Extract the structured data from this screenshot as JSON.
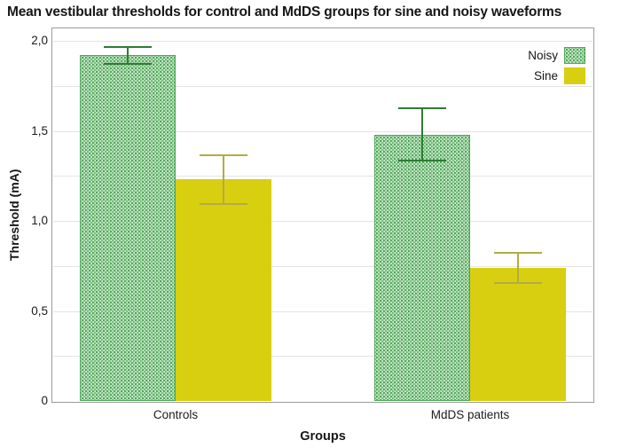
{
  "chart_data": {
    "type": "bar",
    "title": "Mean vestibular thresholds for control and MdDS groups for sine and noisy waveforms",
    "xlabel": "Groups",
    "ylabel": "Threshold (mA)",
    "categories": [
      "Controls",
      "MdDS patients"
    ],
    "series": [
      {
        "name": "Noisy",
        "values": [
          1.92,
          1.48
        ],
        "errors": [
          0.05,
          0.15
        ],
        "style": "green-dot-pattern"
      },
      {
        "name": "Sine",
        "values": [
          1.23,
          0.74
        ],
        "errors": [
          0.14,
          0.09
        ],
        "style": "solid-yellow"
      }
    ],
    "ylim": [
      0,
      2.065
    ],
    "yticks": {
      "values": [
        0,
        0.5,
        1.0,
        1.5,
        2.0
      ],
      "labels": [
        "0",
        "0,5",
        "1,0",
        "1,5",
        "2,0"
      ]
    },
    "grid": {
      "orientation": "horizontal",
      "step": 0.25,
      "max": 2.0
    },
    "legend": {
      "position": "top-right",
      "entries": [
        "Noisy",
        "Sine"
      ]
    },
    "colors": {
      "noisy_dot": "#2f8f3c",
      "noisy_border": "#55a55b",
      "noisy_error": "#2e7d35",
      "sine_fill": "#d8cf10",
      "sine_error": "#b3ab45",
      "gridline": "#e4e4e4",
      "plot_border": "#9b9b9b",
      "text": "#161616"
    }
  }
}
